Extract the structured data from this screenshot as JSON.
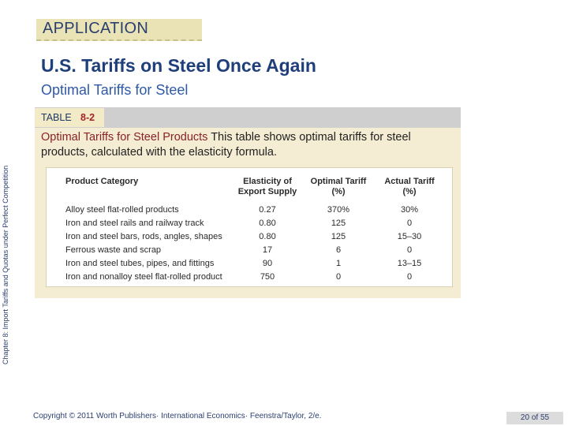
{
  "section_tag": "APPLICATION",
  "title": "U.S. Tariffs on Steel Once Again",
  "subtitle": "Optimal Tariffs for Steel",
  "side_label": "Chapter 8: Import Tariffs and Quotas under Perfect Competition",
  "table": {
    "label": "TABLE",
    "number": "8-2",
    "caption_title": "Optimal Tariffs for Steel Products",
    "caption_body": " This table shows optimal tariffs for steel products, calculated with the elasticity formula.",
    "headers": {
      "product": "Product Category",
      "elasticity": "Elasticity of Export Supply",
      "optimal": "Optimal Tariff (%)",
      "actual": "Actual Tariff (%)"
    },
    "rows": [
      {
        "product": "Alloy steel flat-rolled products",
        "elasticity": "0.27",
        "optimal": "370%",
        "actual": "30%"
      },
      {
        "product": "Iron and steel rails and railway track",
        "elasticity": "0.80",
        "optimal": "125",
        "actual": "0"
      },
      {
        "product": "Iron and steel bars, rods, angles, shapes",
        "elasticity": "0.80",
        "optimal": "125",
        "actual": "15–30"
      },
      {
        "product": "Ferrous waste and scrap",
        "elasticity": "17",
        "optimal": "6",
        "actual": "0"
      },
      {
        "product": "Iron and steel tubes, pipes, and fittings",
        "elasticity": "90",
        "optimal": "1",
        "actual": "13–15"
      },
      {
        "product": "Iron and nonalloy steel flat-rolled product",
        "elasticity": "750",
        "optimal": "0",
        "actual": "0"
      }
    ]
  },
  "footer": "Copyright © 2011 Worth Publishers· International Economics· Feenstra/Taylor, 2/e.",
  "page_number": "20 of 55"
}
